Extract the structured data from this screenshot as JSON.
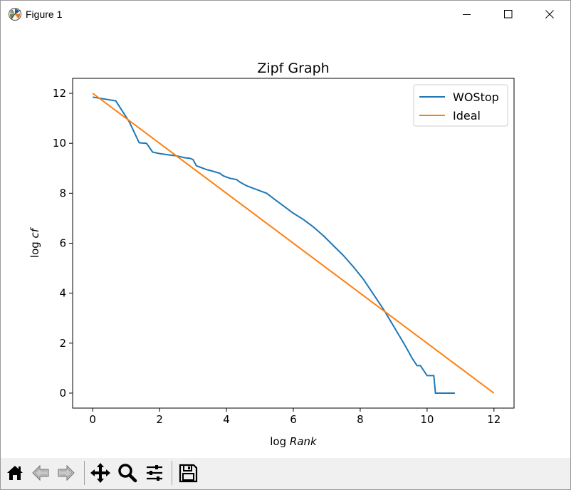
{
  "window": {
    "title": "Figure 1",
    "controls": [
      "minimize",
      "maximize",
      "close"
    ]
  },
  "toolbar": {
    "buttons": [
      {
        "name": "home-icon"
      },
      {
        "name": "back-icon"
      },
      {
        "name": "forward-icon"
      },
      {
        "name": "pan-icon"
      },
      {
        "name": "zoom-icon"
      },
      {
        "name": "configure-subplots-icon"
      },
      {
        "name": "save-icon"
      }
    ]
  },
  "chart_data": {
    "type": "line",
    "title": "Zipf Graph",
    "xlabel_plain": "log ",
    "xlabel_italic": "Rank",
    "ylabel_plain": "log ",
    "ylabel_italic": "cf",
    "xlim": [
      -0.6,
      12.6
    ],
    "ylim": [
      -0.6,
      12.6
    ],
    "xticks": [
      0,
      2,
      4,
      6,
      8,
      10,
      12
    ],
    "yticks": [
      0,
      2,
      4,
      6,
      8,
      10,
      12
    ],
    "grid": false,
    "legend_position": "upper right",
    "series": [
      {
        "name": "WOStop",
        "color": "#1f77b4",
        "x": [
          0,
          0.69,
          1.1,
          1.39,
          1.61,
          1.79,
          1.95,
          2.2,
          2.5,
          2.75,
          2.9,
          3.0,
          3.1,
          3.2,
          3.4,
          3.6,
          3.8,
          3.9,
          4.1,
          4.3,
          4.4,
          4.6,
          4.8,
          5.0,
          5.2,
          5.4,
          5.6,
          5.8,
          6.0,
          6.3,
          6.6,
          6.9,
          7.2,
          7.5,
          7.8,
          8.1,
          8.4,
          8.7,
          8.9,
          9.1,
          9.3,
          9.45,
          9.55,
          9.7,
          9.8,
          10.0,
          10.2,
          10.25,
          10.5,
          10.83
        ],
        "y": [
          11.85,
          11.7,
          10.85,
          10.02,
          10.0,
          9.65,
          9.6,
          9.55,
          9.5,
          9.42,
          9.4,
          9.35,
          9.1,
          9.05,
          8.95,
          8.88,
          8.8,
          8.7,
          8.6,
          8.55,
          8.45,
          8.3,
          8.2,
          8.1,
          8.0,
          7.8,
          7.6,
          7.4,
          7.2,
          6.95,
          6.65,
          6.3,
          5.9,
          5.5,
          5.05,
          4.55,
          3.95,
          3.35,
          2.9,
          2.45,
          2.0,
          1.65,
          1.4,
          1.1,
          1.1,
          0.7,
          0.7,
          0.0,
          0.0,
          0.0
        ]
      },
      {
        "name": "Ideal",
        "color": "#ff7f0e",
        "x": [
          0,
          12
        ],
        "y": [
          12,
          0
        ]
      }
    ]
  }
}
